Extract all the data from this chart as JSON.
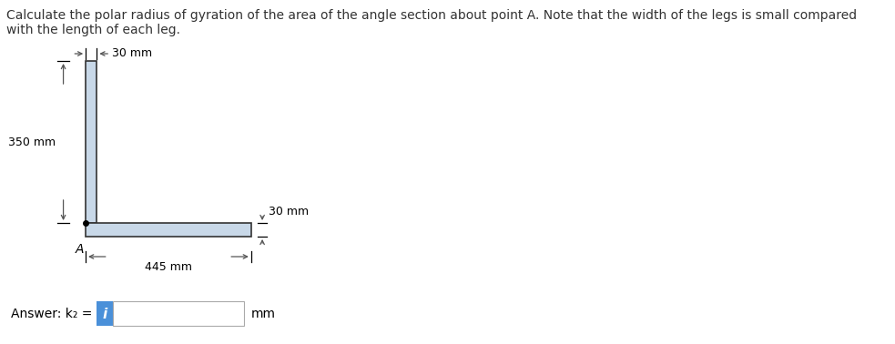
{
  "title_text": "Calculate the polar radius of gyration of the area of the angle section about point A. Note that the width of the legs is small compared\nwith the length of each leg.",
  "title_fontsize": 10,
  "background_color": "#ffffff",
  "shape_fill_color": "#c8d8e8",
  "shape_edge_color": "#333333",
  "dim_30mm_top_label": "30 mm",
  "dim_30mm_right_label": "30 mm",
  "dim_350mm_label": "350 mm",
  "dim_445mm_label": "445 mm",
  "point_A_label": "A",
  "answer_label": "Answer: k₂ =",
  "answer_unit": "mm",
  "answer_box_color": "#4a90d9",
  "answer_i_color": "#ffffff",
  "shape_lw": 1.2
}
